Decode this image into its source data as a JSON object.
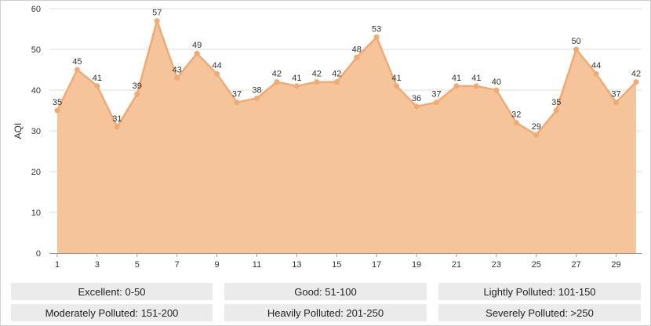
{
  "chart_data": {
    "type": "area",
    "ylabel": "AQI",
    "ylim": [
      0,
      60
    ],
    "yticks": [
      0,
      10,
      20,
      30,
      40,
      50,
      60
    ],
    "xlim": [
      1,
      30
    ],
    "xticks": [
      1,
      3,
      5,
      7,
      9,
      11,
      13,
      15,
      17,
      19,
      21,
      23,
      25,
      27,
      29
    ],
    "x": [
      1,
      2,
      3,
      4,
      5,
      6,
      7,
      8,
      9,
      10,
      11,
      12,
      13,
      14,
      15,
      16,
      17,
      18,
      19,
      20,
      21,
      22,
      23,
      24,
      25,
      26,
      27,
      28,
      29,
      30
    ],
    "values": [
      35,
      45,
      41,
      31,
      39,
      57,
      43,
      49,
      44,
      37,
      38,
      42,
      41,
      42,
      42,
      48,
      53,
      41,
      36,
      37,
      41,
      41,
      40,
      32,
      29,
      35,
      50,
      44,
      37,
      42
    ],
    "grid": true,
    "colors": {
      "fill": "#f5c49a",
      "line": "#f0aa74",
      "point": "#f0aa74",
      "grid": "#dddddd"
    }
  },
  "legend": [
    "Excellent: 0-50",
    "Good: 51-100",
    "Lightly Polluted: 101-150",
    "Moderately Polluted: 151-200",
    "Heavily Polluted: 201-250",
    "Severely Polluted: >250"
  ]
}
